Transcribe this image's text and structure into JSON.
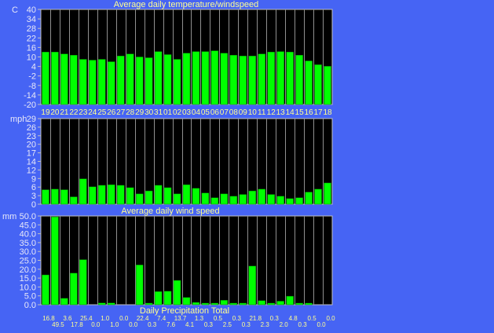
{
  "colors": {
    "background": "#4664f4",
    "plot_bg": "#000000",
    "bar": "#00ff00",
    "grid": "#909090",
    "title": "#ffff90",
    "axis_text": "#e8e8f8"
  },
  "chart_data": [
    {
      "type": "bar",
      "title": "Average daily temperature/windspeed",
      "ylabel": "C",
      "ylim": [
        -20,
        40
      ],
      "yticks": [
        "40",
        "34",
        "28",
        "22",
        "16",
        "10",
        "4",
        "-2",
        "-8",
        "-14",
        "-20"
      ],
      "categories": [
        "19",
        "20",
        "21",
        "22",
        "23",
        "24",
        "25",
        "26",
        "27",
        "28",
        "29",
        "30",
        "31",
        "01",
        "02",
        "03",
        "04",
        "05",
        "06",
        "07",
        "08",
        "09",
        "10",
        "11",
        "12",
        "13",
        "14",
        "15",
        "16",
        "17",
        "18"
      ],
      "values": [
        13.1,
        13.1,
        11.9,
        11.1,
        8.5,
        8.0,
        8.5,
        7.0,
        10.6,
        11.9,
        10.0,
        9.5,
        13.4,
        11.5,
        8.5,
        12.4,
        13.4,
        13.4,
        13.9,
        12.4,
        11.1,
        10.6,
        10.6,
        11.9,
        13.1,
        13.4,
        13.1,
        11.1,
        7.5,
        5.1,
        4.1
      ],
      "grid": true
    },
    {
      "type": "bar",
      "title": "Average daily wind speed",
      "ylabel": "mph",
      "ylim": [
        0,
        29
      ],
      "yticks": [
        "29",
        "26",
        "23",
        "20",
        "17",
        "14",
        "12",
        "9",
        "6",
        "3",
        "0"
      ],
      "values": [
        4.9,
        5.1,
        4.9,
        2.5,
        8.6,
        5.9,
        6.4,
        6.6,
        6.4,
        5.6,
        3.5,
        4.5,
        6.4,
        5.6,
        3.5,
        6.6,
        5.4,
        3.8,
        2.2,
        3.5,
        2.7,
        3.3,
        4.5,
        5.1,
        3.3,
        2.7,
        1.9,
        2.2,
        4.1,
        5.1,
        7.2
      ],
      "grid": true
    },
    {
      "type": "bar",
      "title": "Daily Precipitation Total",
      "ylabel": "mm",
      "ylim": [
        0,
        50
      ],
      "yticks": [
        "50.0",
        "45.0",
        "40.0",
        "35.0",
        "30.0",
        "25.0",
        "20.0",
        "15.0",
        "10.0",
        "5.0",
        "0.0"
      ],
      "values": [
        16.8,
        49.5,
        3.6,
        17.8,
        25.4,
        0.0,
        1.0,
        1.0,
        0.0,
        0.0,
        22.4,
        0.3,
        7.4,
        7.6,
        13.7,
        4.1,
        1.3,
        0.3,
        0.5,
        2.5,
        0.3,
        0.3,
        21.8,
        2.3,
        0.3,
        2.0,
        4.8,
        0.3,
        0.5,
        0.0,
        0.0
      ],
      "value_labels": [
        "16.8",
        "49.5",
        "3.6",
        "17.8",
        "25.4",
        "0.0",
        "1.0",
        "1.0",
        "0.0",
        "0.0",
        "22.4",
        "0.3",
        "7.4",
        "7.6",
        "13.7",
        "4.1",
        "1.3",
        "0.3",
        "0.5",
        "2.5",
        "0.3",
        "0.3",
        "21.8",
        "2.3",
        "0.3",
        "2.0",
        "4.8",
        "0.3",
        "0.5",
        "0.0",
        "0.0"
      ],
      "grid": true
    }
  ]
}
